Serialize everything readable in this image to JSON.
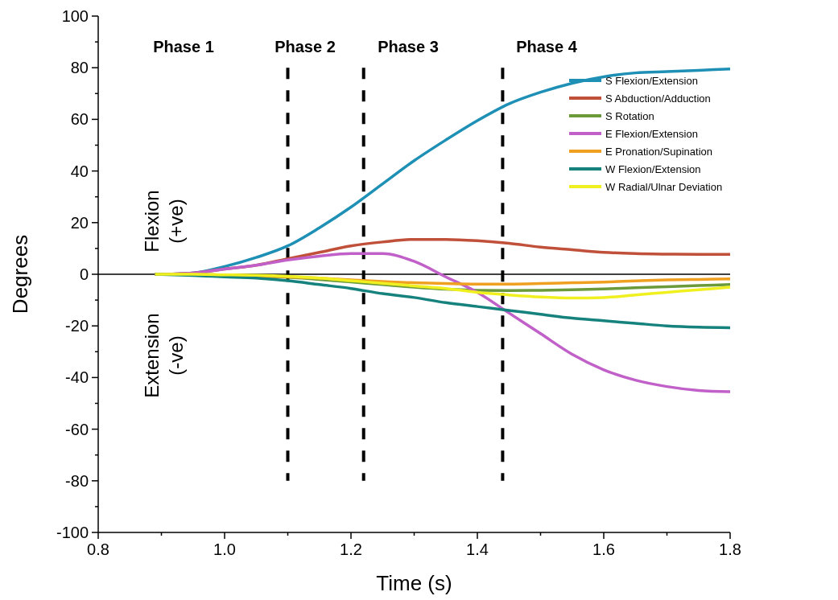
{
  "chart_data": {
    "type": "line",
    "xlabel": "Time (s)",
    "ylabel": "Degrees",
    "x": [
      0.89,
      0.95,
      1.0,
      1.05,
      1.1,
      1.15,
      1.2,
      1.25,
      1.3,
      1.35,
      1.4,
      1.45,
      1.5,
      1.55,
      1.6,
      1.65,
      1.7,
      1.75,
      1.8
    ],
    "series": [
      {
        "name": "S Flexion/Extension",
        "color": "#1e90b5",
        "values": [
          0,
          0.5,
          3,
          6.5,
          11,
          18,
          26,
          35,
          44,
          52,
          59.5,
          66,
          70.5,
          74,
          76.5,
          78,
          78.5,
          79,
          79.5
        ]
      },
      {
        "name": "S Abduction/Adduction",
        "color": "#c0503a",
        "values": [
          0,
          0.5,
          2,
          3.5,
          6,
          8.5,
          11,
          12.5,
          13.5,
          13.5,
          13,
          12,
          10.5,
          9.5,
          8.5,
          8,
          7.8,
          7.7,
          7.7
        ]
      },
      {
        "name": "S Rotation",
        "color": "#6a9a3a",
        "values": [
          0,
          0,
          -0.3,
          -0.7,
          -1.2,
          -2,
          -3,
          -4,
          -5,
          -5.8,
          -6.2,
          -6.3,
          -6.2,
          -6,
          -5.7,
          -5.2,
          -4.8,
          -4.4,
          -4
        ]
      },
      {
        "name": "E Flexion/Extension",
        "color": "#c060c8",
        "values": [
          0,
          0.5,
          2,
          3.5,
          5.5,
          7,
          8,
          8,
          5,
          -1,
          -7,
          -15,
          -23,
          -31,
          -37,
          -41,
          -43.5,
          -45,
          -45.5
        ]
      },
      {
        "name": "E Pronation/Supination",
        "color": "#f0a020",
        "values": [
          0,
          0,
          -0.3,
          -0.6,
          -1,
          -1.5,
          -2.2,
          -2.8,
          -3.3,
          -3.6,
          -3.8,
          -3.8,
          -3.6,
          -3.3,
          -3,
          -2.6,
          -2.2,
          -2,
          -1.8
        ]
      },
      {
        "name": "W Flexion/Extension",
        "color": "#15827e",
        "values": [
          0,
          -0.5,
          -1,
          -1.5,
          -2.5,
          -4,
          -5.5,
          -7.5,
          -9,
          -11,
          -12.5,
          -14,
          -15.5,
          -17,
          -18,
          -19,
          -20,
          -20.5,
          -20.7
        ]
      },
      {
        "name": "W Radial/Ulnar Deviation",
        "color": "#f0f020",
        "values": [
          0,
          0,
          -0.2,
          -0.4,
          -0.8,
          -1.5,
          -2.5,
          -3.5,
          -4.5,
          -5.5,
          -7,
          -8,
          -8.8,
          -9.2,
          -9,
          -8,
          -7,
          -6,
          -5
        ]
      }
    ],
    "xlim": [
      0.8,
      1.8
    ],
    "xticks": [
      0.8,
      {
        "value": 0.9,
        "label": null
      },
      "1.0",
      {
        "value": 1.1,
        "label": null
      },
      1.2,
      {
        "value": 1.3,
        "label": null
      },
      1.4,
      {
        "value": 1.5,
        "label": null
      },
      1.6,
      {
        "value": 1.7,
        "label": null
      },
      1.8
    ],
    "ylim": [
      -100,
      100
    ],
    "yticks": [
      -100,
      {
        "value": -90,
        "label": null
      },
      -80,
      {
        "value": -70,
        "label": null
      },
      -60,
      {
        "value": -50,
        "label": null
      },
      -40,
      {
        "value": -30,
        "label": null
      },
      -20,
      {
        "value": -10,
        "label": null
      },
      0,
      {
        "value": 10,
        "label": null
      },
      20,
      {
        "value": 30,
        "label": null
      },
      40,
      {
        "value": 50,
        "label": null
      },
      60,
      {
        "value": 70,
        "label": null
      },
      80,
      {
        "value": 90,
        "label": null
      },
      100
    ],
    "ref_lines": [
      {
        "axis": "y",
        "value": 0,
        "color": "#000000",
        "line_style": "solid"
      },
      {
        "axis": "x",
        "value": 1.1,
        "color": "#000000",
        "line_style": "dashed"
      },
      {
        "axis": "x",
        "value": 1.22,
        "color": "#000000",
        "line_style": "dashed"
      },
      {
        "axis": "x",
        "value": 1.44,
        "color": "#000000",
        "line_style": "dashed"
      }
    ],
    "annotations": [
      "Phase 1",
      "Phase 2",
      "Phase 3",
      "Phase 4",
      "Flexion\n(+ve)",
      "Extension\n(-ve)"
    ],
    "legend": "top right",
    "grid": false,
    "line_style": "solid"
  }
}
